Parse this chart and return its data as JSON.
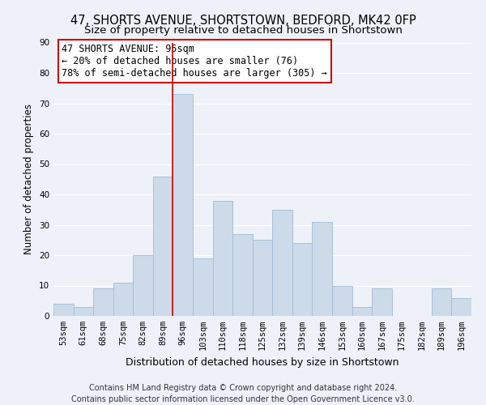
{
  "title": "47, SHORTS AVENUE, SHORTSTOWN, BEDFORD, MK42 0FP",
  "subtitle": "Size of property relative to detached houses in Shortstown",
  "xlabel": "Distribution of detached houses by size in Shortstown",
  "ylabel": "Number of detached properties",
  "bar_labels": [
    "53sqm",
    "61sqm",
    "68sqm",
    "75sqm",
    "82sqm",
    "89sqm",
    "96sqm",
    "103sqm",
    "110sqm",
    "118sqm",
    "125sqm",
    "132sqm",
    "139sqm",
    "146sqm",
    "153sqm",
    "160sqm",
    "167sqm",
    "175sqm",
    "182sqm",
    "189sqm",
    "196sqm"
  ],
  "bar_values": [
    4,
    3,
    9,
    11,
    20,
    46,
    73,
    19,
    38,
    27,
    25,
    35,
    24,
    31,
    10,
    3,
    9,
    0,
    0,
    9,
    6
  ],
  "bar_color": "#ccdaea",
  "bar_edge_color": "#a8c0d8",
  "highlight_index": 6,
  "highlight_line_color": "#cc0000",
  "ylim": [
    0,
    90
  ],
  "yticks": [
    0,
    10,
    20,
    30,
    40,
    50,
    60,
    70,
    80,
    90
  ],
  "annotation_title": "47 SHORTS AVENUE: 95sqm",
  "annotation_line1": "← 20% of detached houses are smaller (76)",
  "annotation_line2": "78% of semi-detached houses are larger (305) →",
  "annotation_box_color": "#ffffff",
  "annotation_box_edge": "#cc0000",
  "footer_line1": "Contains HM Land Registry data © Crown copyright and database right 2024.",
  "footer_line2": "Contains public sector information licensed under the Open Government Licence v3.0.",
  "background_color": "#eef2f8",
  "grid_color": "#ffffff",
  "title_fontsize": 10.5,
  "subtitle_fontsize": 9.5,
  "xlabel_fontsize": 9,
  "ylabel_fontsize": 8.5,
  "tick_fontsize": 7.5,
  "annotation_fontsize": 8.5,
  "footer_fontsize": 7
}
